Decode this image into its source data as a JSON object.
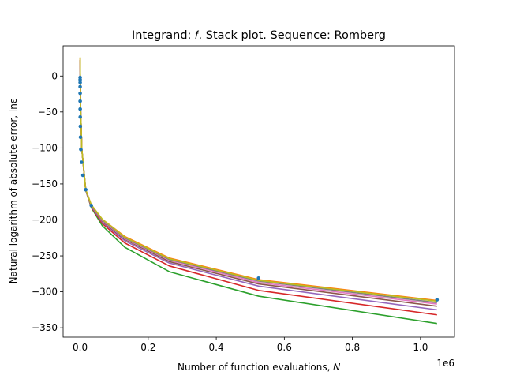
{
  "chart_data": {
    "type": "line",
    "title": "Integrand: 𝑓. Stack plot. Sequence: Romberg",
    "xlabel": "Number of function evaluations, 𝑁",
    "ylabel": "Natural logarithm of absolute error, lnε",
    "x_offset_label": "1e6",
    "x_scale": 1000000,
    "xlim": [
      -50000,
      1100000
    ],
    "ylim": [
      -363,
      42
    ],
    "xticks": [
      0,
      200000,
      400000,
      600000,
      800000,
      1000000
    ],
    "xtick_labels": [
      "0.0",
      "0.2",
      "0.4",
      "0.6",
      "0.8",
      "1.0"
    ],
    "yticks": [
      0,
      -50,
      -100,
      -150,
      -200,
      -250,
      -300,
      -350
    ],
    "ytick_labels": [
      "0",
      "−50",
      "−100",
      "−150",
      "−200",
      "−250",
      "−300",
      "−350"
    ],
    "grid": false,
    "legend": "none",
    "points": {
      "color": "#1f77b4",
      "x": [
        3,
        5,
        9,
        17,
        33,
        65,
        129,
        257,
        513,
        1025,
        2049,
        4097,
        8193,
        16385,
        32769,
        524289,
        1048577
      ],
      "y": [
        -2,
        -5,
        -9,
        -15,
        -24,
        -35,
        -46,
        -57,
        -70,
        -85,
        -102,
        -120,
        -138,
        -158,
        -180,
        -281,
        -311
      ]
    },
    "series": [
      {
        "color": "#2ca02c",
        "x": [
          0,
          1000,
          5000,
          16385,
          32769,
          65000,
          131073,
          262145,
          524289,
          1048577
        ],
        "y": [
          22,
          -40,
          -102,
          -159,
          -183,
          -208,
          -238,
          -272,
          -306,
          -344
        ]
      },
      {
        "color": "#d62728",
        "x": [
          0,
          1000,
          5000,
          16385,
          32769,
          65000,
          131073,
          262145,
          524289,
          1048577
        ],
        "y": [
          22,
          -40,
          -102,
          -159,
          -182,
          -205,
          -232,
          -264,
          -298,
          -332
        ]
      },
      {
        "color": "#9467bd",
        "x": [
          0,
          1000,
          5000,
          16385,
          32769,
          65000,
          131073,
          262145,
          524289,
          1048577
        ],
        "y": [
          22,
          -40,
          -102,
          -159,
          -181,
          -203,
          -229,
          -260,
          -292,
          -325
        ]
      },
      {
        "color": "#8c564b",
        "x": [
          0,
          1000,
          5000,
          16385,
          32769,
          65000,
          131073,
          262145,
          524289,
          1048577
        ],
        "y": [
          22,
          -40,
          -102,
          -158,
          -180,
          -202,
          -227,
          -258,
          -289,
          -320
        ]
      },
      {
        "color": "#e377c2",
        "x": [
          0,
          1000,
          5000,
          16385,
          32769,
          65000,
          131073,
          262145,
          524289,
          1048577
        ],
        "y": [
          22,
          -40,
          -102,
          -158,
          -180,
          -201,
          -226,
          -256,
          -287,
          -317
        ]
      },
      {
        "color": "#7f7f7f",
        "x": [
          0,
          1000,
          5000,
          16385,
          32769,
          65000,
          131073,
          262145,
          524289,
          1048577
        ],
        "y": [
          22,
          -40,
          -102,
          -158,
          -180,
          -200,
          -225,
          -255,
          -285,
          -315
        ]
      },
      {
        "color": "#ff7f0e",
        "x": [
          0,
          1000,
          5000,
          16385,
          32769,
          65000,
          131073,
          262145,
          524289,
          1048577
        ],
        "y": [
          25,
          -40,
          -102,
          -158,
          -179,
          -199,
          -223,
          -253,
          -283,
          -312
        ]
      },
      {
        "color": "#bcbd22",
        "x": [
          0,
          1000,
          5000,
          16385,
          32769,
          65000,
          131073,
          262145,
          524289,
          1048577
        ],
        "y": [
          26,
          -40,
          -102,
          -158,
          -179,
          -199,
          -224,
          -254,
          -284,
          -313
        ]
      }
    ]
  }
}
